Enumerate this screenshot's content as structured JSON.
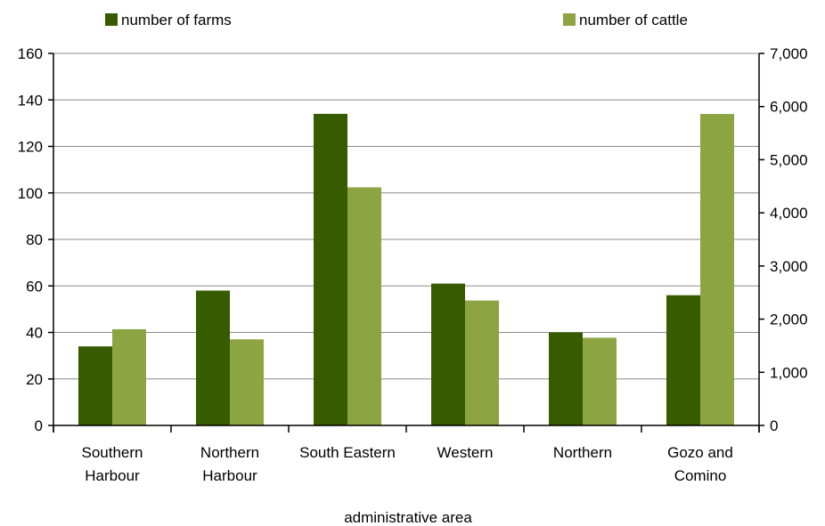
{
  "chart_data": {
    "type": "bar",
    "title": "",
    "xlabel": "administrative area",
    "categories": [
      [
        "Southern",
        "Harbour"
      ],
      [
        "Northern",
        "Harbour"
      ],
      [
        "South Eastern"
      ],
      [
        "Western"
      ],
      [
        "Northern"
      ],
      [
        "Gozo and",
        "Comino"
      ]
    ],
    "series": [
      {
        "name": "number of farms",
        "axis": "left",
        "color": "#375c00",
        "values": [
          34,
          58,
          134,
          61,
          40,
          56
        ]
      },
      {
        "name": "number of cattle",
        "axis": "right",
        "color": "#8da442",
        "values": [
          1810,
          1620,
          4480,
          2350,
          1650,
          5860
        ]
      }
    ],
    "y_left": {
      "min": 0,
      "max": 160,
      "ticks": [
        "0",
        "20",
        "40",
        "60",
        "80",
        "100",
        "120",
        "140",
        "160"
      ]
    },
    "y_right": {
      "min": 0,
      "max": 7000,
      "ticks": [
        "0",
        "1,000",
        "2,000",
        "3,000",
        "4,000",
        "5,000",
        "6,000",
        "7,000"
      ]
    },
    "grid": true,
    "legend_position": "top"
  }
}
